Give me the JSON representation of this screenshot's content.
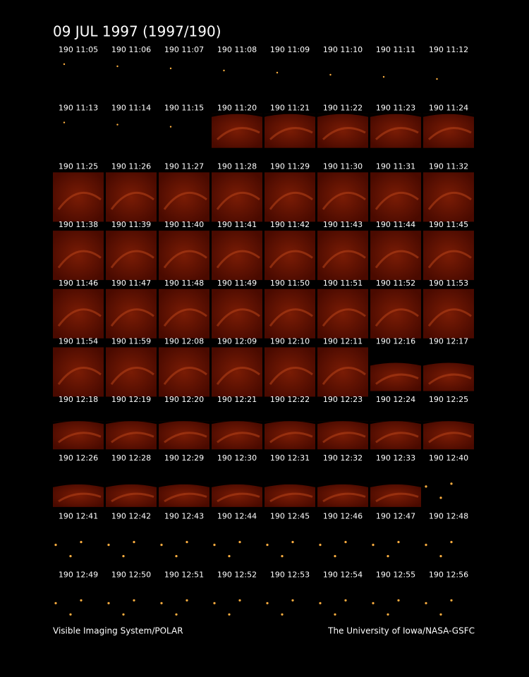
{
  "header": {
    "title": "09 JUL 1997  (1997/190)"
  },
  "frames": [
    "190 11:05",
    "190 11:06",
    "190 11:07",
    "190 11:08",
    "190 11:09",
    "190 11:10",
    "190 11:11",
    "190 11:12",
    "190 11:13",
    "190 11:14",
    "190 11:15",
    "190 11:20",
    "190 11:21",
    "190 11:22",
    "190 11:23",
    "190 11:24",
    "190 11:25",
    "190 11:26",
    "190 11:27",
    "190 11:28",
    "190 11:29",
    "190 11:30",
    "190 11:31",
    "190 11:32",
    "190 11:38",
    "190 11:39",
    "190 11:40",
    "190 11:41",
    "190 11:42",
    "190 11:43",
    "190 11:44",
    "190 11:45",
    "190 11:46",
    "190 11:47",
    "190 11:48",
    "190 11:49",
    "190 11:50",
    "190 11:51",
    "190 11:52",
    "190 11:53",
    "190 11:54",
    "190 11:59",
    "190 12:08",
    "190 12:09",
    "190 12:10",
    "190 12:11",
    "190 12:16",
    "190 12:17",
    "190 12:18",
    "190 12:19",
    "190 12:20",
    "190 12:21",
    "190 12:22",
    "190 12:23",
    "190 12:24",
    "190 12:25",
    "190 12:26",
    "190 12:28",
    "190 12:29",
    "190 12:30",
    "190 12:31",
    "190 12:32",
    "190 12:33",
    "190 12:40",
    "190 12:41",
    "190 12:42",
    "190 12:43",
    "190 12:44",
    "190 12:45",
    "190 12:46",
    "190 12:47",
    "190 12:48",
    "190 12:49",
    "190 12:50",
    "190 12:51",
    "190 12:52",
    "190 12:53",
    "190 12:54",
    "190 12:55",
    "190 12:56"
  ],
  "footer": {
    "left": "Visible Imaging System/POLAR",
    "right": "The University of Iowa/NASA-GSFC"
  }
}
